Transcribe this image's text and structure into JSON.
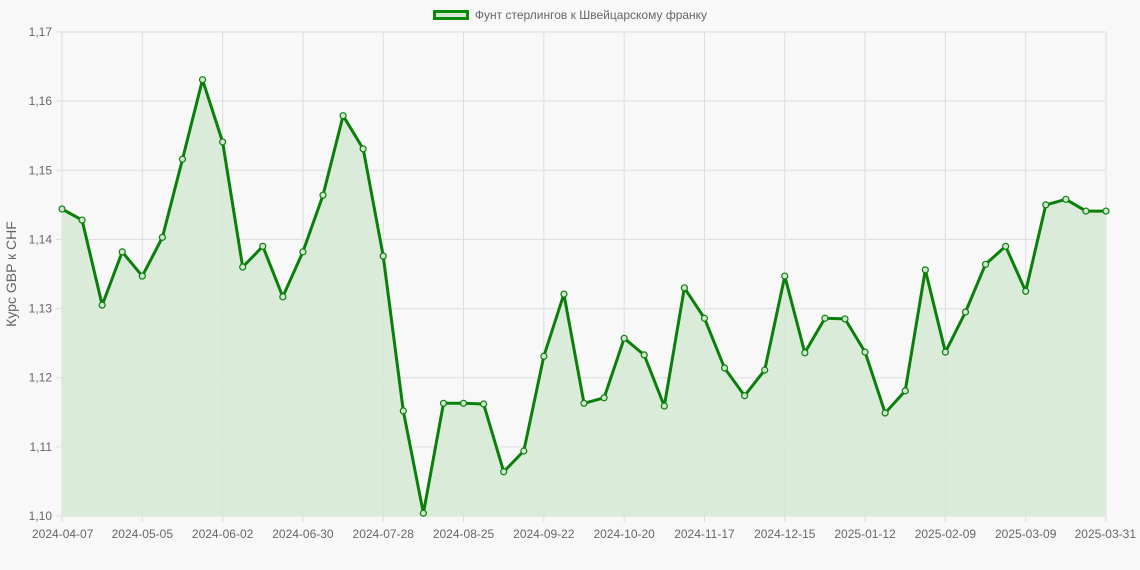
{
  "chart_data": {
    "type": "line",
    "fill": true,
    "legend": {
      "position": "top",
      "entries": [
        "Фунт стерлингов к Швейцарскому франку"
      ]
    },
    "ylabel": "Курс GBP к CHF",
    "xlabel": "",
    "ylim": [
      1.1,
      1.17
    ],
    "yticks": [
      "1,10",
      "1,11",
      "1,12",
      "1,13",
      "1,14",
      "1,15",
      "1,16",
      "1,17"
    ],
    "grid": true,
    "colors": {
      "line": "#0a800a",
      "fill": "#d7e9d5",
      "grid": "#dddddd"
    },
    "categories": [
      "2024-04-07",
      "2024-04-14",
      "2024-04-21",
      "2024-04-28",
      "2024-05-05",
      "2024-05-12",
      "2024-05-19",
      "2024-05-26",
      "2024-06-02",
      "2024-06-09",
      "2024-06-16",
      "2024-06-23",
      "2024-06-30",
      "2024-07-07",
      "2024-07-14",
      "2024-07-21",
      "2024-07-28",
      "2024-08-04",
      "2024-08-11",
      "2024-08-18",
      "2024-08-25",
      "2024-09-01",
      "2024-09-08",
      "2024-09-15",
      "2024-09-22",
      "2024-09-29",
      "2024-10-06",
      "2024-10-13",
      "2024-10-20",
      "2024-10-27",
      "2024-11-03",
      "2024-11-10",
      "2024-11-17",
      "2024-11-24",
      "2024-12-01",
      "2024-12-08",
      "2024-12-15",
      "2024-12-22",
      "2024-12-29",
      "2025-01-05",
      "2025-01-12",
      "2025-01-19",
      "2025-01-26",
      "2025-02-02",
      "2025-02-09",
      "2025-02-16",
      "2025-02-23",
      "2025-03-02",
      "2025-03-09",
      "2025-03-16",
      "2025-03-23",
      "2025-03-30",
      "2025-03-31"
    ],
    "series": [
      {
        "name": "Фунт стерлингов к Швейцарскому франку",
        "values": [
          1.1444,
          1.1428,
          1.1305,
          1.1382,
          1.1347,
          1.1403,
          1.1516,
          1.1631,
          1.1541,
          1.136,
          1.139,
          1.1317,
          1.1382,
          1.1464,
          1.1579,
          1.1531,
          1.1376,
          1.1152,
          1.1004,
          1.1163,
          1.1163,
          1.1162,
          1.1064,
          1.1094,
          1.1231,
          1.1321,
          1.1163,
          1.1171,
          1.1257,
          1.1233,
          1.1159,
          1.133,
          1.1286,
          1.1214,
          1.1174,
          1.1211,
          1.1347,
          1.1236,
          1.1286,
          1.1285,
          1.1237,
          1.1149,
          1.1181,
          1.1356,
          1.1237,
          1.1295,
          1.1364,
          1.139,
          1.1325,
          1.145,
          1.1458,
          1.1441,
          1.1441
        ]
      }
    ]
  }
}
